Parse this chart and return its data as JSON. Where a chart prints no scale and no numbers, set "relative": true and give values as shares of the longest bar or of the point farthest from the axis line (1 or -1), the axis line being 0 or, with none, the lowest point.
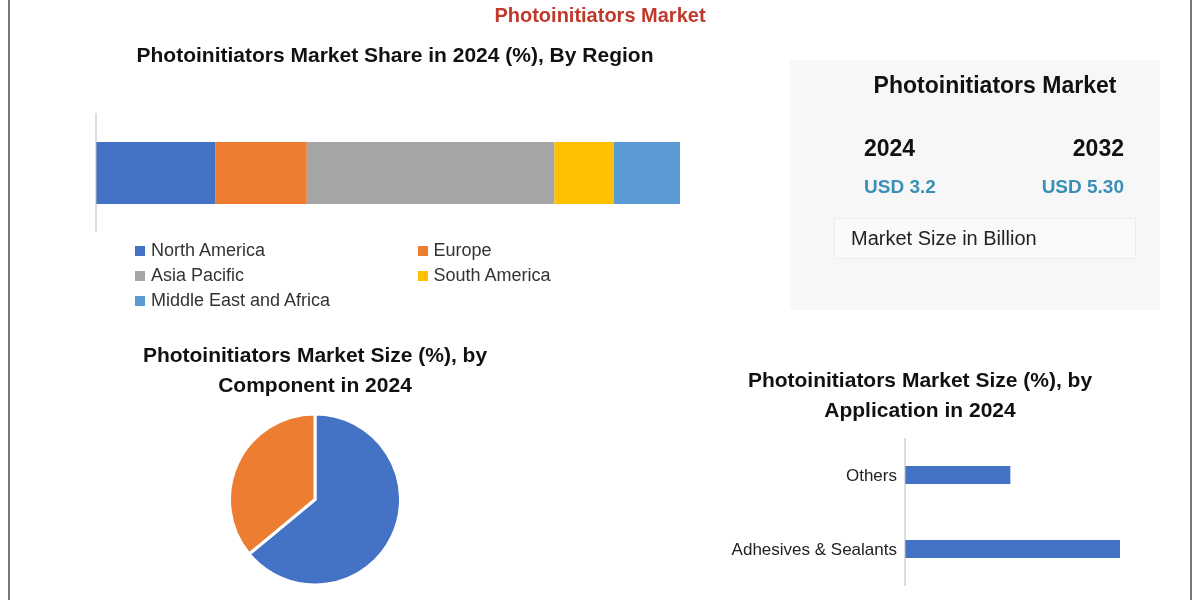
{
  "chart_data": [
    {
      "type": "bar",
      "title": "Photoinitiators Market Share in 2024 (%), By Region",
      "orientation": "horizontal",
      "stacked": true,
      "relative": true,
      "categories": [
        null
      ],
      "legend": "bottom",
      "series": [
        {
          "name": "North America",
          "color": "#4472c4",
          "values": [
            0.204
          ]
        },
        {
          "name": "Europe",
          "color": "#ed7d31",
          "values": [
            0.157
          ]
        },
        {
          "name": "Asia Pacific",
          "color": "#a5a5a5",
          "values": [
            0.424
          ]
        },
        {
          "name": "South America",
          "color": "#ffc000",
          "values": [
            0.102
          ]
        },
        {
          "name": "Middle East and Africa",
          "color": "#5b9bd5",
          "values": [
            0.113
          ]
        }
      ]
    },
    {
      "type": "other",
      "title": "Photoinitiators Market",
      "annotations": [
        "Photoinitiators Market",
        "2024",
        "2032",
        "USD 3.2",
        "USD 5.30",
        "Market Size in Billion"
      ]
    },
    {
      "type": "pie",
      "title": "Photoinitiators Market Size (%), by Component in 2024",
      "categories": [
        null,
        null
      ],
      "values": [
        64,
        36
      ],
      "colors": [
        "#4472c4",
        "#ed7d31"
      ]
    },
    {
      "type": "bar",
      "title": "Photoinitiators Market Size (%), by Application in 2024",
      "orientation": "horizontal",
      "relative": true,
      "categories": [
        "Others",
        "Adhesives & Sealants"
      ],
      "values": [
        0.49,
        1
      ],
      "color": "#4472c4"
    }
  ]
}
